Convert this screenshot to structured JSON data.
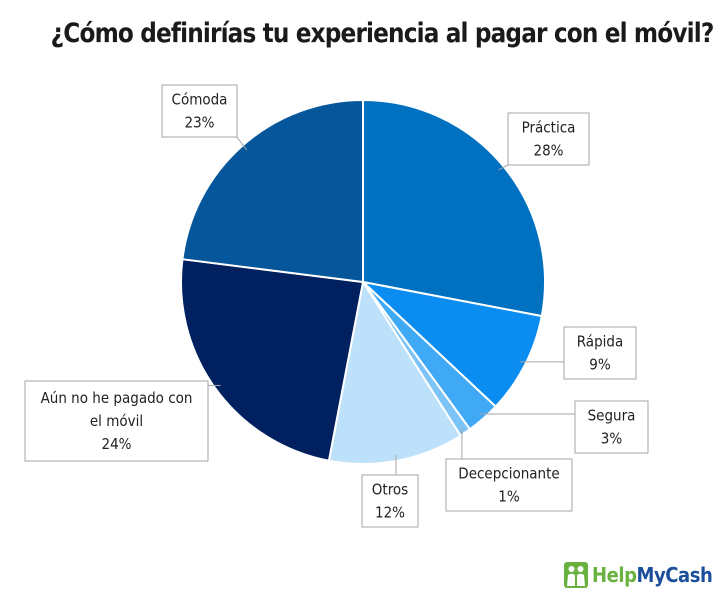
{
  "chart_data": {
    "type": "pie",
    "title": "¿Cómo definirías tu experiencia al pagar con el móvil?",
    "categories": [
      "Práctica",
      "Rápida",
      "Segura",
      "Decepcionante",
      "Otros",
      "Aún no he pagado con el móvil",
      "Cómoda"
    ],
    "values": [
      28,
      9,
      3,
      1,
      12,
      24,
      23
    ],
    "labels": [
      "28%",
      "9%",
      "3%",
      "1%",
      "12%",
      "24%",
      "23%"
    ],
    "callout_lines": [
      [
        "Práctica",
        "28%"
      ],
      [
        "Rápida",
        "9%"
      ],
      [
        "Segura",
        "3%"
      ],
      [
        "Decepcionante",
        "1%"
      ],
      [
        "Otros",
        "12%"
      ],
      [
        "Aún no he pagado con",
        "el móvil",
        "24%"
      ],
      [
        "Cómoda",
        "23%"
      ]
    ],
    "colors": [
      "#0070C0",
      "#0A8CF0",
      "#3FA9F5",
      "#7CC4F8",
      "#BDE0FB",
      "#002060",
      "#06569C"
    ]
  },
  "brand": {
    "name": "HelpMyCash",
    "colors": {
      "green": "#6AB23F",
      "blue": "#1B4F9C"
    },
    "icon": "people-icon"
  }
}
